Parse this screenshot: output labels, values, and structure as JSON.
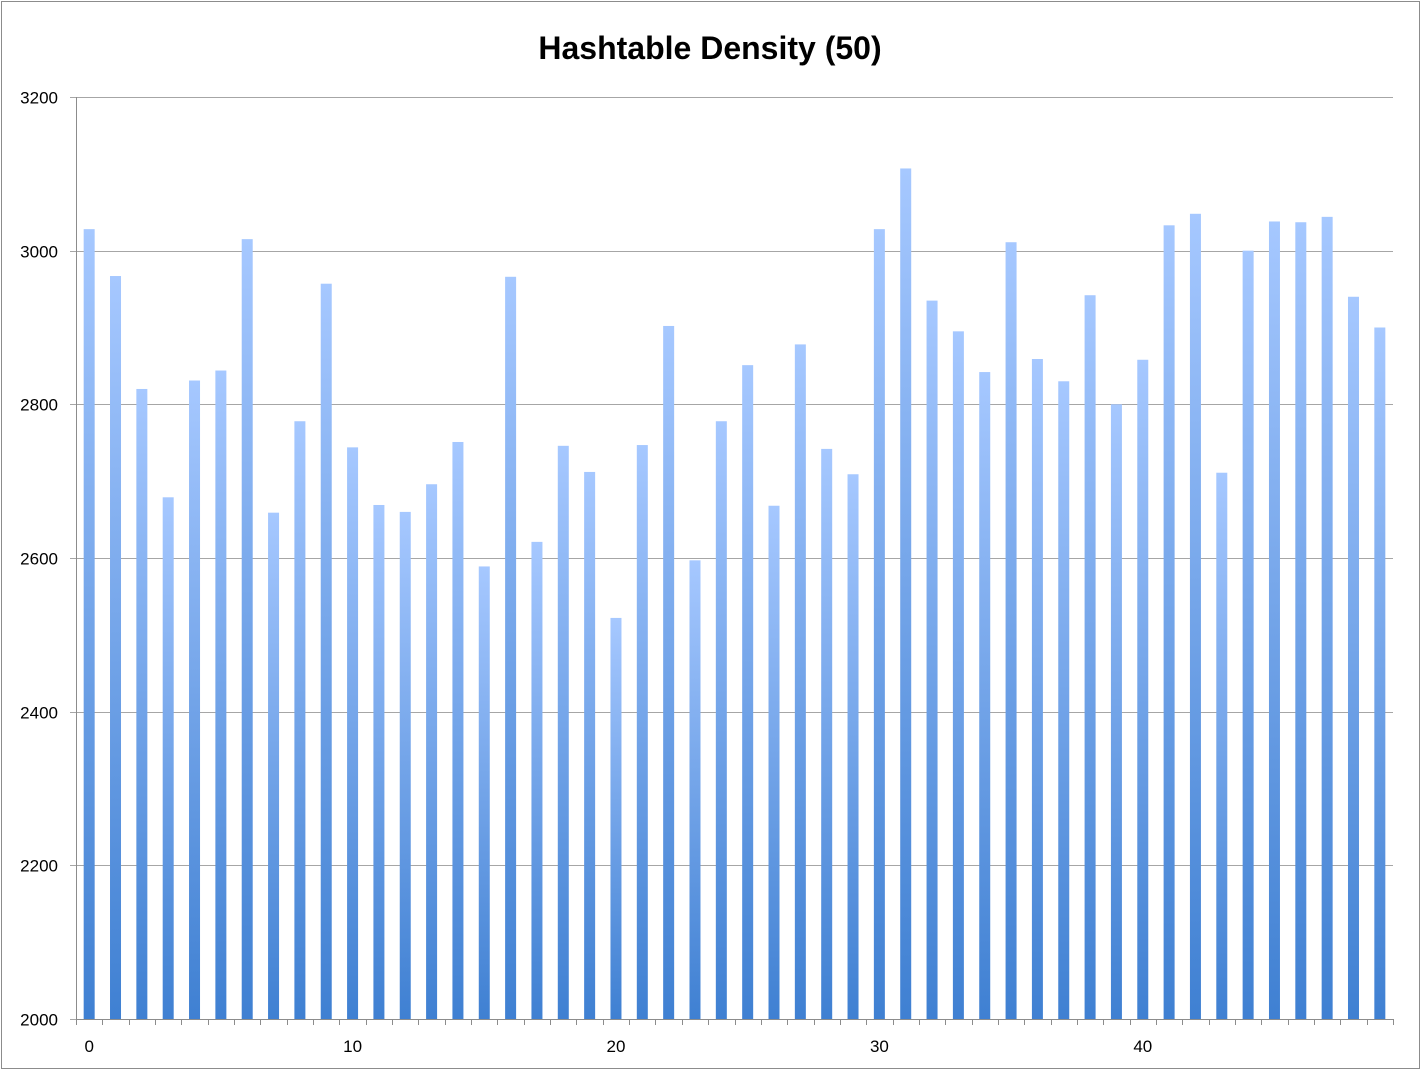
{
  "chart_data": {
    "type": "bar",
    "title": "Hashtable Density (50)",
    "xlabel": "",
    "ylabel": "",
    "ylim": [
      2000,
      3200
    ],
    "y_ticks": [
      2000,
      2200,
      2400,
      2600,
      2800,
      3000,
      3200
    ],
    "x_tick_labels": [
      {
        "index": 0,
        "label": "0"
      },
      {
        "index": 10,
        "label": "10"
      },
      {
        "index": 20,
        "label": "20"
      },
      {
        "index": 30,
        "label": "30"
      },
      {
        "index": 40,
        "label": "40"
      }
    ],
    "grid": "horizontal",
    "legend": "none",
    "categories": [
      0,
      1,
      2,
      3,
      4,
      5,
      6,
      7,
      8,
      9,
      10,
      11,
      12,
      13,
      14,
      15,
      16,
      17,
      18,
      19,
      20,
      21,
      22,
      23,
      24,
      25,
      26,
      27,
      28,
      29,
      30,
      31,
      32,
      33,
      34,
      35,
      36,
      37,
      38,
      39,
      40,
      41,
      42,
      43,
      44,
      45,
      46,
      47,
      48,
      49
    ],
    "values": [
      3028,
      2967,
      2820,
      2679,
      2831,
      2844,
      3015,
      2659,
      2778,
      2957,
      2744,
      2669,
      2660,
      2696,
      2751,
      2589,
      2966,
      2621,
      2746,
      2712,
      2522,
      2747,
      2902,
      2597,
      2778,
      2851,
      2668,
      2878,
      2742,
      2709,
      3028,
      3107,
      2935,
      2895,
      2842,
      3011,
      2859,
      2830,
      2942,
      2800,
      2858,
      3033,
      3048,
      2711,
      3000,
      3038,
      3037,
      3044,
      2940,
      2900
    ],
    "colors": {
      "bar_top": "#a6c8ff",
      "bar_bottom": "#3f80d2",
      "grid": "#a6a6a6",
      "axis": "#8c8c8c"
    }
  }
}
